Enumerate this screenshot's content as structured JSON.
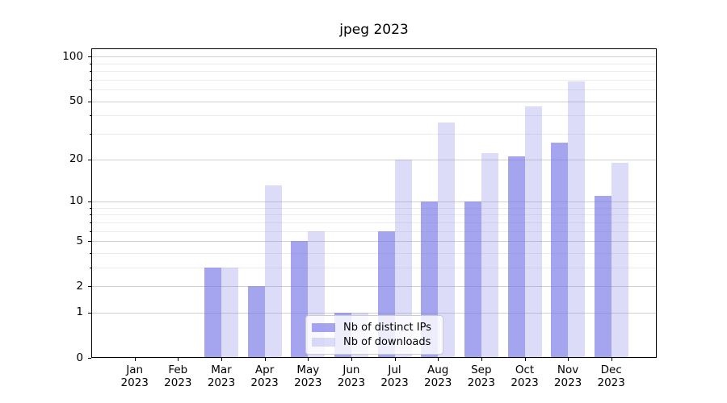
{
  "figure": {
    "title": "jpeg 2023"
  },
  "chart_data": {
    "type": "bar",
    "title": "jpeg 2023",
    "categories": [
      "Jan 2023",
      "Feb 2023",
      "Mar 2023",
      "Apr 2023",
      "May 2023",
      "Jun 2023",
      "Jul 2023",
      "Aug 2023",
      "Sep 2023",
      "Oct 2023",
      "Nov 2023",
      "Dec 2023"
    ],
    "month_labels": [
      "Jan",
      "Feb",
      "Mar",
      "Apr",
      "May",
      "Jun",
      "Jul",
      "Aug",
      "Sep",
      "Oct",
      "Nov",
      "Dec"
    ],
    "year_label": "2023",
    "series": [
      {
        "name": "Nb of distinct IPs",
        "values": [
          0,
          0,
          3,
          2,
          5,
          1,
          6,
          10,
          10,
          21,
          26,
          11
        ],
        "color": "#a4a4ee",
        "fill": "rgba(117,117,230,0.65)"
      },
      {
        "name": "Nb of downloads",
        "values": [
          0,
          0,
          3,
          13,
          6,
          1,
          20,
          36,
          22,
          46,
          68,
          19
        ],
        "color": "#dcdcf8",
        "fill": "rgba(138,138,232,0.30)"
      }
    ],
    "xlabel": "",
    "ylabel": "",
    "yscale": "symlog",
    "yticks": [
      0,
      1,
      2,
      5,
      10,
      20,
      50,
      100
    ],
    "yticks_minor": [
      3,
      4,
      6,
      7,
      8,
      9,
      30,
      40,
      60,
      70,
      80,
      90
    ],
    "ylim": [
      0,
      115
    ],
    "grid": "horizontal",
    "legend_position": "lower-center-inside"
  },
  "colors": {
    "grid_major": "#d0d0d0",
    "grid_minor": "#ebebeb",
    "axis": "#000000",
    "text": "#000000",
    "legend_border": "#cccccc",
    "legend_bg": "rgba(255,255,255,0.8)"
  }
}
